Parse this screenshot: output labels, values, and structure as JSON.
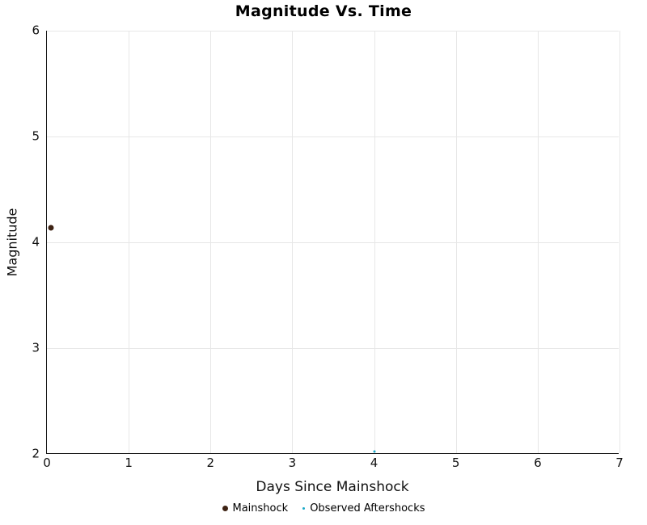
{
  "chart_data": {
    "type": "scatter",
    "title": "Magnitude Vs. Time",
    "xlabel": "Days Since Mainshock",
    "ylabel": "Magnitude",
    "xlim": [
      0,
      7
    ],
    "ylim": [
      2,
      6
    ],
    "x_ticks": [
      0,
      1,
      2,
      3,
      4,
      5,
      6,
      7
    ],
    "y_ticks": [
      2,
      3,
      4,
      5,
      6
    ],
    "grid": true,
    "grid_color": "#e7e7e7",
    "axis_color": "#1a1a1a",
    "legend_position": "bottom",
    "series": [
      {
        "name": "Mainshock",
        "color": "#3e2314",
        "marker_size": 7,
        "points": [
          {
            "x": 0.05,
            "y": 4.14
          }
        ]
      },
      {
        "name": "Observed Aftershocks",
        "color": "#1ca9c9",
        "marker_size": 3,
        "points": [
          {
            "x": 4.0,
            "y": 2.02
          }
        ]
      }
    ]
  }
}
